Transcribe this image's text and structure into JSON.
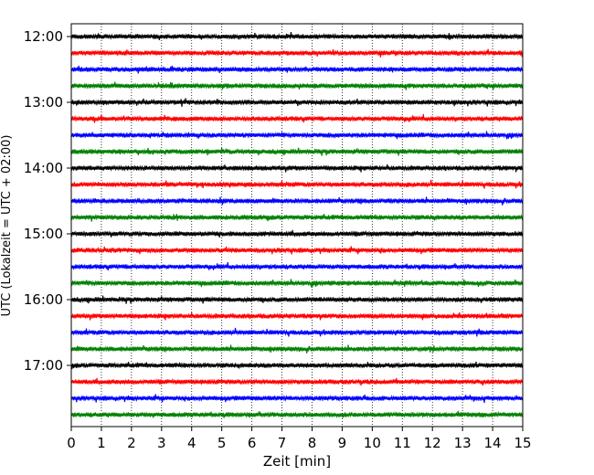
{
  "chart_data": {
    "type": "line",
    "title": "",
    "xlabel": "Zeit  [min]",
    "ylabel": "UTC (Lokalzeit = UTC + 02:00)",
    "xlim": [
      0,
      15
    ],
    "x_ticks": [
      "0",
      "1",
      "2",
      "3",
      "4",
      "5",
      "6",
      "7",
      "8",
      "9",
      "10",
      "11",
      "12",
      "13",
      "14",
      "15"
    ],
    "y_ticks": [
      "12:00",
      "13:00",
      "14:00",
      "15:00",
      "16:00",
      "17:00"
    ],
    "grid": "vertical dotted at each minute",
    "trace_colors": [
      "#000000",
      "#ff0000",
      "#0000ff",
      "#008000"
    ],
    "traces": [
      {
        "start": "12:00",
        "color": "#000000"
      },
      {
        "start": "12:15",
        "color": "#ff0000"
      },
      {
        "start": "12:30",
        "color": "#0000ff"
      },
      {
        "start": "12:45",
        "color": "#008000"
      },
      {
        "start": "13:00",
        "color": "#000000"
      },
      {
        "start": "13:15",
        "color": "#ff0000"
      },
      {
        "start": "13:30",
        "color": "#0000ff"
      },
      {
        "start": "13:45",
        "color": "#008000"
      },
      {
        "start": "14:00",
        "color": "#000000"
      },
      {
        "start": "14:15",
        "color": "#ff0000"
      },
      {
        "start": "14:30",
        "color": "#0000ff"
      },
      {
        "start": "14:45",
        "color": "#008000"
      },
      {
        "start": "15:00",
        "color": "#000000"
      },
      {
        "start": "15:15",
        "color": "#ff0000"
      },
      {
        "start": "15:30",
        "color": "#0000ff"
      },
      {
        "start": "15:45",
        "color": "#008000"
      },
      {
        "start": "16:00",
        "color": "#000000"
      },
      {
        "start": "16:15",
        "color": "#ff0000"
      },
      {
        "start": "16:30",
        "color": "#0000ff"
      },
      {
        "start": "16:45",
        "color": "#008000"
      },
      {
        "start": "17:00",
        "color": "#000000"
      },
      {
        "start": "17:15",
        "color": "#ff0000"
      },
      {
        "start": "17:30",
        "color": "#0000ff"
      },
      {
        "start": "17:45",
        "color": "#008000"
      }
    ]
  }
}
